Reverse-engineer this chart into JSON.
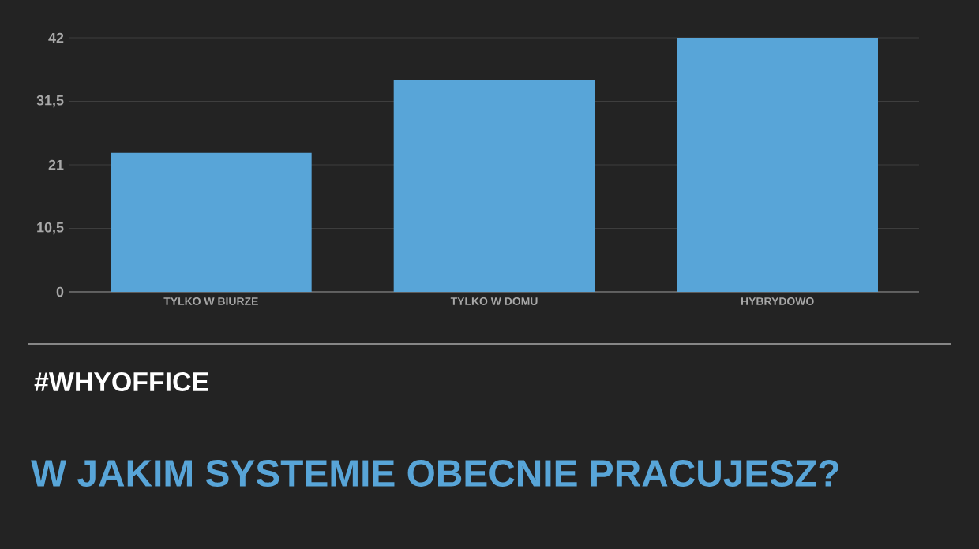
{
  "chart_data": {
    "type": "bar",
    "title": "W JAKIM SYSTEMIE OBECNIE PRACUJESZ?",
    "subtitle": "#WHYOFFICE",
    "categories": [
      "TYLKO W BIURZE",
      "TYLKO W DOMU",
      "HYBRYDOWO"
    ],
    "values": [
      23,
      35,
      42
    ],
    "color": "#58a5d8",
    "ylim": [
      0,
      42
    ],
    "yticks": [
      0,
      {
        "value": 10.5,
        "label": "10,5"
      },
      21,
      {
        "value": 31.5,
        "label": "31,5"
      },
      42
    ],
    "grid": "y"
  }
}
